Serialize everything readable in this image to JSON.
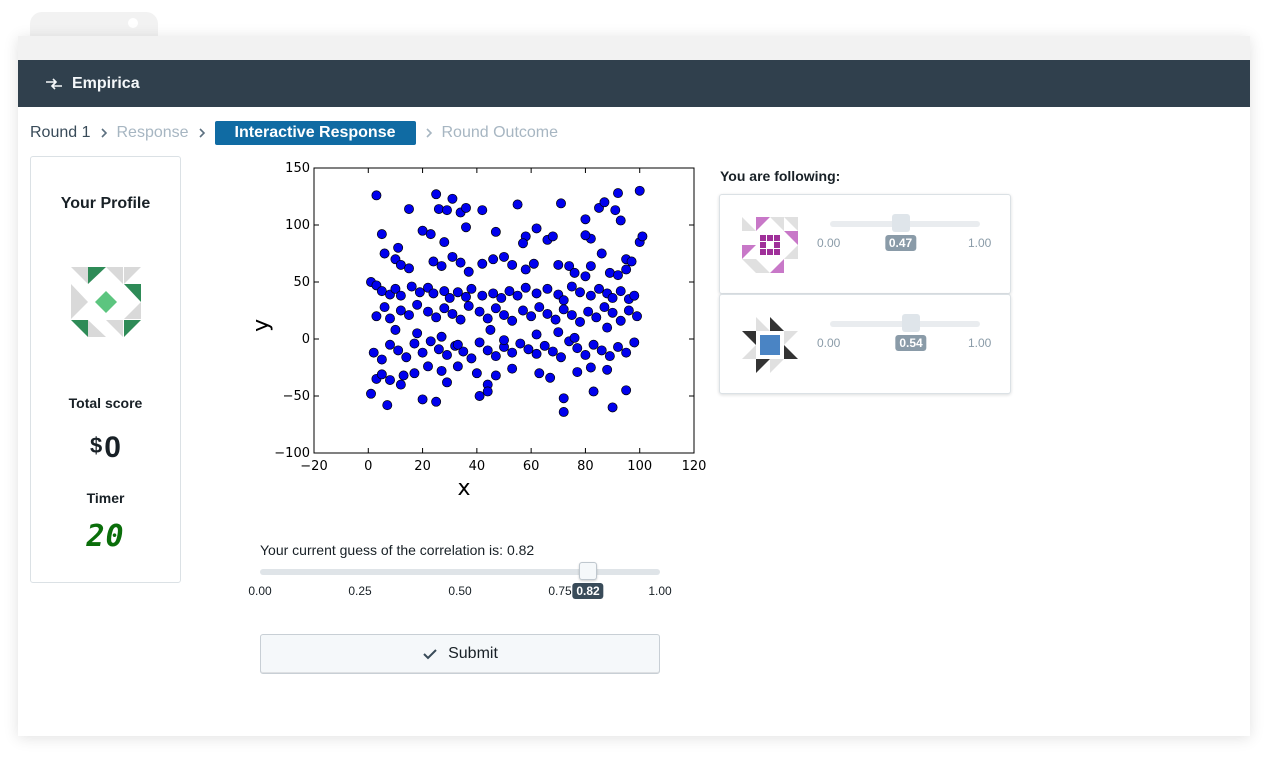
{
  "app": {
    "brand": "Empirica"
  },
  "breadcrumbs": [
    {
      "label": "Round 1",
      "state": "current"
    },
    {
      "label": "Response",
      "state": "done"
    },
    {
      "label": "Interactive Response",
      "state": "active"
    },
    {
      "label": "Round Outcome",
      "state": "pending"
    }
  ],
  "profile": {
    "title": "Your Profile",
    "total_score_label": "Total score",
    "currency": "$",
    "score": "0",
    "timer_label": "Timer",
    "timer_value": "20"
  },
  "guess": {
    "text": "Your current guess of the correlation is: 0.82",
    "value": 0.82,
    "value_label": "0.82",
    "ticks": [
      "0.00",
      "0.25",
      "0.50",
      "0.75",
      "1.00"
    ]
  },
  "submit": {
    "label": "Submit",
    "icon": "check-icon"
  },
  "following": {
    "label": "You are following:",
    "players": [
      {
        "value": 0.47,
        "value_label": "0.47",
        "min_label": "0.00",
        "max_label": "1.00",
        "avatar_color": "#a0309a"
      },
      {
        "value": 0.54,
        "value_label": "0.54",
        "min_label": "0.00",
        "max_label": "1.00",
        "avatar_color": "#3a78b8"
      }
    ]
  },
  "chart_data": {
    "type": "scatter",
    "xlabel": "x",
    "ylabel": "y",
    "xlim": [
      -20,
      120
    ],
    "ylim": [
      -100,
      150
    ],
    "xticks": [
      "−20",
      "0",
      "20",
      "40",
      "60",
      "80",
      "100",
      "120"
    ],
    "yticks": [
      "−100",
      "−50",
      "0",
      "50",
      "100",
      "150"
    ],
    "grid": false,
    "marker_color": "#0000ee",
    "points": [
      [
        3,
        126
      ],
      [
        25,
        127
      ],
      [
        31,
        123
      ],
      [
        71,
        119
      ],
      [
        55,
        118
      ],
      [
        26,
        114
      ],
      [
        29,
        113
      ],
      [
        34,
        111
      ],
      [
        36,
        115
      ],
      [
        15,
        114
      ],
      [
        42,
        113
      ],
      [
        85,
        115
      ],
      [
        91,
        113
      ],
      [
        92,
        128
      ],
      [
        100,
        130
      ],
      [
        87,
        120
      ],
      [
        80,
        105
      ],
      [
        93,
        104
      ],
      [
        5,
        92
      ],
      [
        11,
        80
      ],
      [
        20,
        95
      ],
      [
        23,
        92
      ],
      [
        28,
        85
      ],
      [
        36,
        98
      ],
      [
        47,
        94
      ],
      [
        58,
        90
      ],
      [
        62,
        97
      ],
      [
        57,
        84
      ],
      [
        66,
        87
      ],
      [
        68,
        90
      ],
      [
        82,
        88
      ],
      [
        80,
        91
      ],
      [
        86,
        75
      ],
      [
        95,
        70
      ],
      [
        100,
        85
      ],
      [
        101,
        90
      ],
      [
        6,
        75
      ],
      [
        10,
        70
      ],
      [
        12,
        65
      ],
      [
        15,
        62
      ],
      [
        24,
        68
      ],
      [
        27,
        64
      ],
      [
        31,
        72
      ],
      [
        34,
        67
      ],
      [
        37,
        59
      ],
      [
        42,
        66
      ],
      [
        46,
        70
      ],
      [
        50,
        72
      ],
      [
        53,
        65
      ],
      [
        58,
        61
      ],
      [
        61,
        66
      ],
      [
        70,
        65
      ],
      [
        74,
        64
      ],
      [
        76,
        58
      ],
      [
        80,
        55
      ],
      [
        82,
        64
      ],
      [
        89,
        58
      ],
      [
        92,
        56
      ],
      [
        95,
        61
      ],
      [
        97,
        68
      ],
      [
        1,
        50
      ],
      [
        3,
        47
      ],
      [
        5,
        42
      ],
      [
        8,
        39
      ],
      [
        10,
        44
      ],
      [
        12,
        38
      ],
      [
        16,
        46
      ],
      [
        19,
        41
      ],
      [
        22,
        45
      ],
      [
        24,
        40
      ],
      [
        28,
        42
      ],
      [
        30,
        36
      ],
      [
        33,
        41
      ],
      [
        36,
        37
      ],
      [
        38,
        44
      ],
      [
        42,
        38
      ],
      [
        46,
        40
      ],
      [
        49,
        36
      ],
      [
        52,
        42
      ],
      [
        55,
        38
      ],
      [
        58,
        45
      ],
      [
        62,
        40
      ],
      [
        66,
        44
      ],
      [
        70,
        39
      ],
      [
        72,
        34
      ],
      [
        75,
        46
      ],
      [
        78,
        41
      ],
      [
        82,
        38
      ],
      [
        85,
        44
      ],
      [
        88,
        40
      ],
      [
        90,
        36
      ],
      [
        93,
        42
      ],
      [
        96,
        35
      ],
      [
        98,
        38
      ],
      [
        3,
        20
      ],
      [
        6,
        28
      ],
      [
        8,
        18
      ],
      [
        12,
        25
      ],
      [
        15,
        21
      ],
      [
        18,
        30
      ],
      [
        22,
        24
      ],
      [
        25,
        19
      ],
      [
        28,
        27
      ],
      [
        31,
        22
      ],
      [
        34,
        17
      ],
      [
        37,
        29
      ],
      [
        41,
        24
      ],
      [
        44,
        18
      ],
      [
        47,
        27
      ],
      [
        50,
        21
      ],
      [
        53,
        16
      ],
      [
        57,
        25
      ],
      [
        60,
        20
      ],
      [
        63,
        28
      ],
      [
        66,
        22
      ],
      [
        69,
        17
      ],
      [
        72,
        26
      ],
      [
        75,
        21
      ],
      [
        78,
        15
      ],
      [
        81,
        24
      ],
      [
        84,
        19
      ],
      [
        87,
        28
      ],
      [
        90,
        23
      ],
      [
        93,
        16
      ],
      [
        96,
        25
      ],
      [
        99,
        20
      ],
      [
        2,
        -12
      ],
      [
        5,
        -18
      ],
      [
        8,
        -5
      ],
      [
        11,
        -10
      ],
      [
        14,
        -16
      ],
      [
        17,
        -4
      ],
      [
        20,
        -12
      ],
      [
        23,
        -2
      ],
      [
        26,
        -9
      ],
      [
        29,
        -14
      ],
      [
        32,
        -6
      ],
      [
        35,
        -11
      ],
      [
        38,
        -17
      ],
      [
        41,
        -3
      ],
      [
        44,
        -10
      ],
      [
        47,
        -15
      ],
      [
        50,
        -7
      ],
      [
        53,
        -12
      ],
      [
        56,
        -4
      ],
      [
        59,
        -9
      ],
      [
        62,
        -13
      ],
      [
        65,
        -6
      ],
      [
        68,
        -11
      ],
      [
        71,
        -16
      ],
      [
        74,
        -2
      ],
      [
        77,
        -8
      ],
      [
        80,
        -14
      ],
      [
        83,
        -5
      ],
      [
        86,
        -10
      ],
      [
        89,
        -15
      ],
      [
        92,
        -7
      ],
      [
        95,
        -12
      ],
      [
        98,
        -3
      ],
      [
        3,
        -35
      ],
      [
        5,
        -31
      ],
      [
        8,
        -36
      ],
      [
        13,
        -32
      ],
      [
        17,
        -30
      ],
      [
        22,
        -24
      ],
      [
        27,
        -28
      ],
      [
        29,
        -38
      ],
      [
        33,
        -24
      ],
      [
        40,
        -30
      ],
      [
        44,
        -40
      ],
      [
        47,
        -32
      ],
      [
        53,
        -26
      ],
      [
        63,
        -30
      ],
      [
        67,
        -34
      ],
      [
        77,
        -29
      ],
      [
        82,
        -25
      ],
      [
        88,
        -27
      ],
      [
        95,
        -45
      ],
      [
        1,
        -48
      ],
      [
        7,
        -58
      ],
      [
        12,
        -40
      ],
      [
        20,
        -53
      ],
      [
        25,
        -55
      ],
      [
        41,
        -50
      ],
      [
        44,
        -46
      ],
      [
        72,
        -52
      ],
      [
        72,
        -64
      ],
      [
        83,
        -46
      ],
      [
        90,
        -60
      ],
      [
        33,
        -5
      ],
      [
        18,
        5
      ],
      [
        45,
        8
      ],
      [
        62,
        4
      ],
      [
        76,
        1
      ],
      [
        88,
        10
      ],
      [
        10,
        8
      ],
      [
        27,
        2
      ],
      [
        50,
        -1
      ],
      [
        70,
        6
      ]
    ]
  }
}
